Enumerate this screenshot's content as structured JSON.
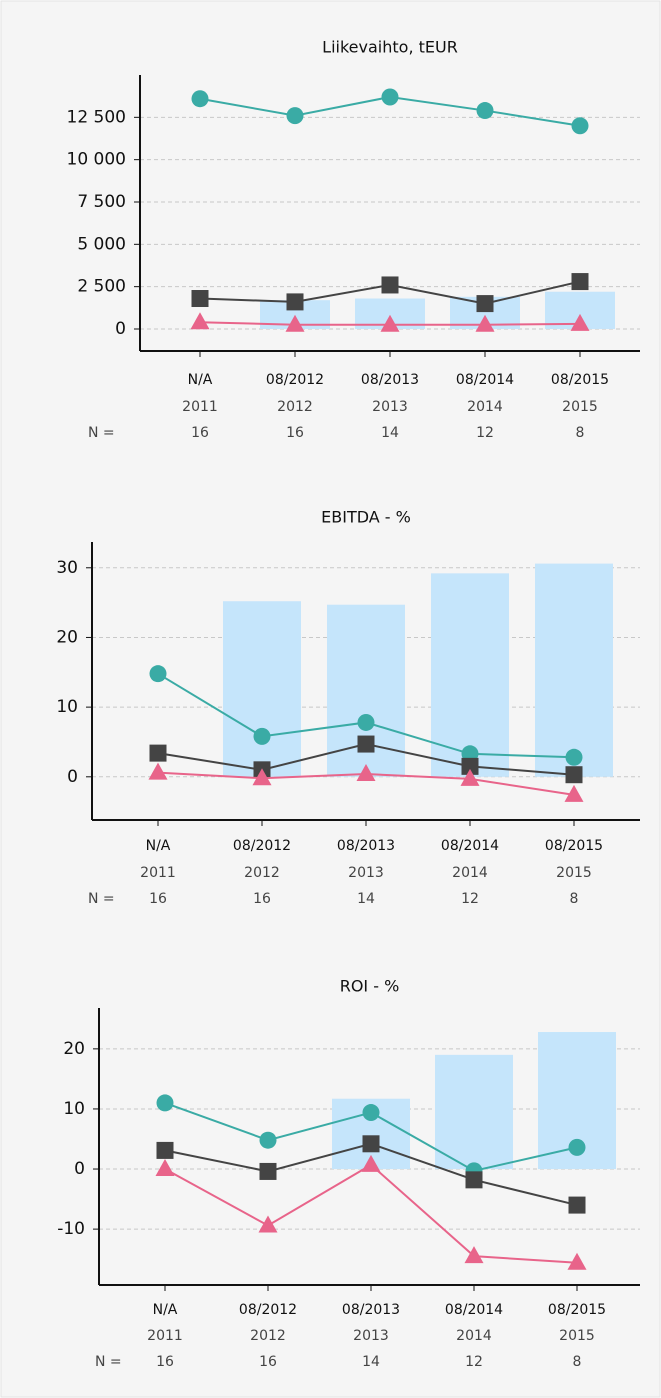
{
  "chart_data": [
    {
      "type": "combo",
      "title": "Liikevaihto, tEUR",
      "categories": [
        "N/A",
        "08/2012",
        "08/2013",
        "08/2014",
        "08/2015"
      ],
      "years": [
        "2011",
        "2012",
        "2013",
        "2014",
        "2015"
      ],
      "count_label": "N =",
      "counts": [
        16,
        16,
        14,
        12,
        8
      ],
      "ylim": [
        -1300,
        15000
      ],
      "yticks": [
        {
          "value": 0,
          "label": "0"
        },
        {
          "value": 2500,
          "label": "2 500"
        },
        {
          "value": 5000,
          "label": "5 000"
        },
        {
          "value": 7500,
          "label": "7 500"
        },
        {
          "value": 10000,
          "label": "10 000"
        },
        {
          "value": 12500,
          "label": "12 500"
        }
      ],
      "grid": true,
      "series": [
        {
          "type": "bar",
          "color": "#c5e5fb",
          "values": [
            null,
            1700,
            1800,
            1900,
            2200
          ]
        },
        {
          "type": "line",
          "marker": "circle",
          "color": "#3aaba5",
          "values": [
            13600,
            12600,
            13700,
            12900,
            12000
          ]
        },
        {
          "type": "line",
          "marker": "square",
          "color": "#444444",
          "values": [
            1800,
            1600,
            2600,
            1500,
            2800
          ]
        },
        {
          "type": "line",
          "marker": "triangle",
          "color": "#e8648a",
          "values": [
            400,
            250,
            250,
            250,
            300
          ]
        }
      ]
    },
    {
      "type": "combo",
      "title": "EBITDA - %",
      "categories": [
        "N/A",
        "08/2012",
        "08/2013",
        "08/2014",
        "08/2015"
      ],
      "years": [
        "2011",
        "2012",
        "2013",
        "2014",
        "2015"
      ],
      "count_label": "N =",
      "counts": [
        16,
        16,
        14,
        12,
        8
      ],
      "ylim": [
        -6.2,
        33.7
      ],
      "yticks": [
        0,
        10,
        20,
        30
      ],
      "grid": true,
      "series": [
        {
          "type": "bar",
          "color": "#c5e5fb",
          "values": [
            null,
            25.2,
            24.7,
            29.2,
            30.6
          ]
        },
        {
          "type": "line",
          "marker": "circle",
          "color": "#3aaba5",
          "values": [
            14.8,
            5.8,
            7.8,
            3.3,
            2.8
          ]
        },
        {
          "type": "line",
          "marker": "square",
          "color": "#444444",
          "values": [
            3.4,
            1.0,
            4.7,
            1.5,
            0.3
          ]
        },
        {
          "type": "line",
          "marker": "triangle",
          "color": "#e8648a",
          "values": [
            0.6,
            -0.2,
            0.4,
            -0.3,
            -2.6
          ]
        }
      ]
    },
    {
      "type": "combo",
      "title": "ROI - %",
      "categories": [
        "N/A",
        "08/2012",
        "08/2013",
        "08/2014",
        "08/2015"
      ],
      "years": [
        "2011",
        "2012",
        "2013",
        "2014",
        "2015"
      ],
      "count_label": "N =",
      "counts": [
        16,
        16,
        14,
        12,
        8
      ],
      "ylim": [
        -19.3,
        26.8
      ],
      "yticks": [
        -10,
        0,
        10,
        20
      ],
      "grid": true,
      "series": [
        {
          "type": "bar",
          "color": "#c5e5fb",
          "values": [
            null,
            null,
            11.7,
            19,
            22.8
          ]
        },
        {
          "type": "line",
          "marker": "circle",
          "color": "#3aaba5",
          "values": [
            11,
            4.8,
            9.4,
            -0.3,
            3.6
          ]
        },
        {
          "type": "line",
          "marker": "square",
          "color": "#444444",
          "values": [
            3.1,
            -0.4,
            4.2,
            -1.8,
            -6
          ]
        },
        {
          "type": "line",
          "marker": "triangle",
          "color": "#e8648a",
          "values": [
            0,
            -9.4,
            0.7,
            -14.5,
            -15.6
          ]
        }
      ]
    }
  ]
}
